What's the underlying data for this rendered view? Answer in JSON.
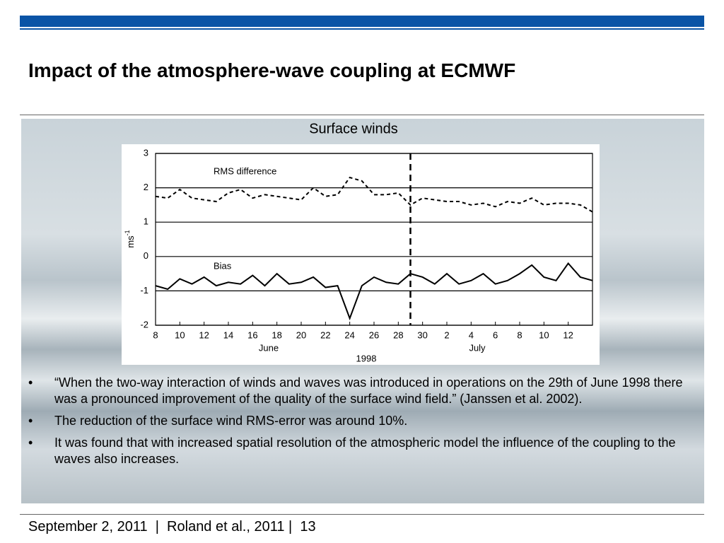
{
  "header": {
    "title": "Impact of the atmosphere-wave coupling at ECMWF"
  },
  "chart_data": {
    "type": "line",
    "title": "Surface winds",
    "y_label": {
      "base": "ms",
      "exponent": "-1"
    },
    "x_label": "1998",
    "months": [
      "June",
      "July"
    ],
    "x": [
      8,
      9,
      10,
      11,
      12,
      13,
      14,
      15,
      16,
      17,
      18,
      19,
      20,
      21,
      22,
      23,
      24,
      25,
      26,
      27,
      28,
      29,
      30,
      31,
      32,
      33,
      34,
      35,
      36,
      37,
      38,
      39,
      40,
      41,
      42,
      43,
      44
    ],
    "series": [
      {
        "name": "RMS difference",
        "color": "#000000",
        "dashed": true,
        "values": [
          1.75,
          1.7,
          1.95,
          1.7,
          1.65,
          1.6,
          1.85,
          1.95,
          1.7,
          1.8,
          1.75,
          1.7,
          1.65,
          2.0,
          1.75,
          1.8,
          2.3,
          2.2,
          1.8,
          1.8,
          1.85,
          1.5,
          1.7,
          1.65,
          1.6,
          1.6,
          1.5,
          1.55,
          1.45,
          1.6,
          1.55,
          1.7,
          1.5,
          1.55,
          1.55,
          1.5,
          1.3
        ]
      },
      {
        "name": "Bias",
        "color": "#000000",
        "dashed": false,
        "values": [
          -0.85,
          -0.95,
          -0.65,
          -0.8,
          -0.6,
          -0.85,
          -0.75,
          -0.8,
          -0.55,
          -0.85,
          -0.5,
          -0.8,
          -0.75,
          -0.6,
          -0.9,
          -0.85,
          -1.8,
          -0.85,
          -0.6,
          -0.75,
          -0.8,
          -0.5,
          -0.6,
          -0.8,
          -0.5,
          -0.8,
          -0.7,
          -0.5,
          -0.8,
          -0.7,
          -0.5,
          -0.25,
          -0.6,
          -0.7,
          -0.2,
          -0.6,
          -0.7
        ]
      }
    ],
    "event_line_x": 29,
    "xlim": [
      8,
      44
    ],
    "xticks": [
      8,
      10,
      12,
      14,
      16,
      18,
      20,
      22,
      24,
      26,
      28,
      30,
      {
        "value": 32,
        "label": "2"
      },
      {
        "value": 34,
        "label": "4"
      },
      {
        "value": 36,
        "label": "6"
      },
      {
        "value": 38,
        "label": "8"
      },
      {
        "value": 40,
        "label": "10"
      },
      {
        "value": 42,
        "label": "12"
      }
    ],
    "ylim": [
      -2,
      3
    ],
    "yticks": [
      -2,
      -1,
      0,
      1,
      2,
      3
    ],
    "grid": true
  },
  "bullets": [
    "“When the two-way interaction of winds and waves was introduced in operations on the 29th of June 1998 there was a pronounced improvement of the quality of the surface wind field.” (Janssen et al. 2002).",
    "The reduction of the surface wind RMS-error was around 10%.",
    "It was found that with increased spatial resolution of the atmospheric model the influence of the coupling to the waves also increases."
  ],
  "footer": "September 2, 2011  |  Roland et al., 2011 |  13"
}
